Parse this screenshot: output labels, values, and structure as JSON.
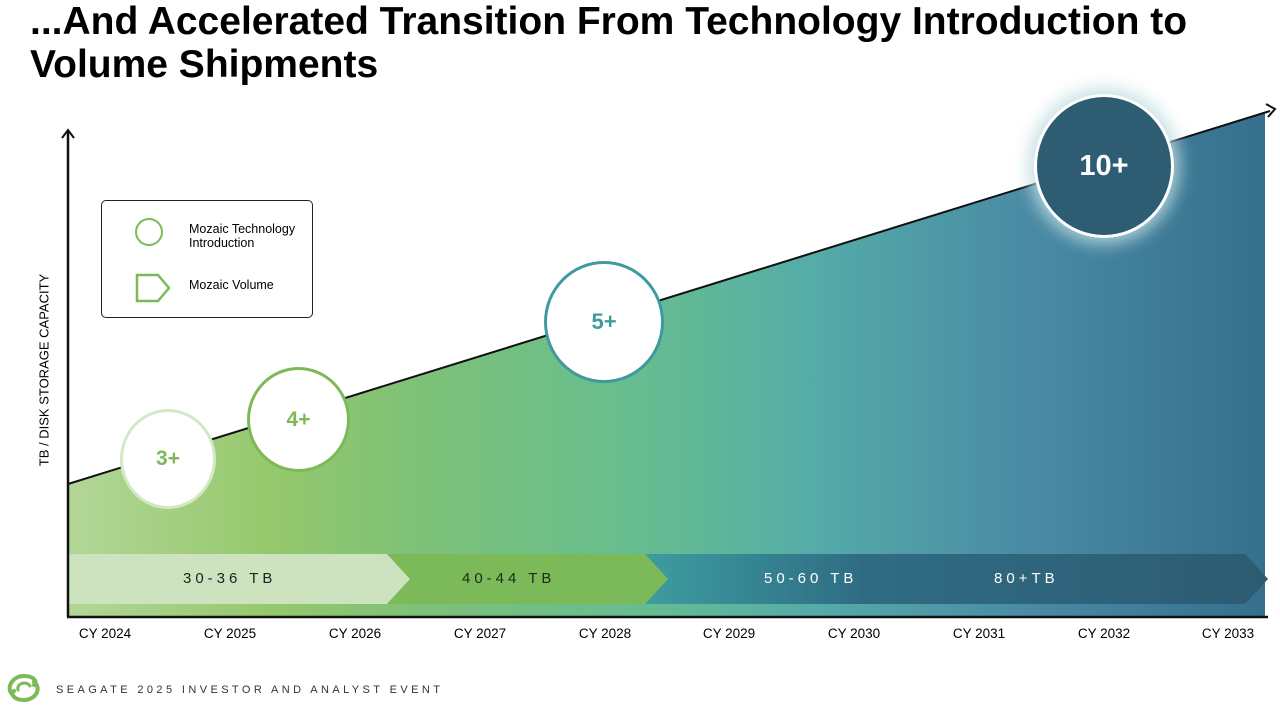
{
  "slide": {
    "title": "...And Accelerated Transition From Technology Introduction to Volume Shipments",
    "footer": "SEAGATE 2025 INVESTOR AND ANALYST EVENT",
    "logo_icon": "seagate-logo-icon"
  },
  "axes": {
    "ylabel": "TB / DISK STORAGE CAPACITY",
    "xticks": [
      "CY 2024",
      "CY 2025",
      "CY 2026",
      "CY 2027",
      "CY 2028",
      "CY 2029",
      "CY 2030",
      "CY 2031",
      "CY 2032",
      "CY 2033"
    ]
  },
  "legend": {
    "introduction_label": "Mozaic Technology Introduction",
    "volume_label": "Mozaic Volume",
    "introduction_icon": "circle-outline-icon",
    "volume_icon": "pentagon-arrow-icon"
  },
  "bubbles": [
    {
      "label": "3+"
    },
    {
      "label": "4+"
    },
    {
      "label": "5+"
    },
    {
      "label": "10+"
    }
  ],
  "bands": [
    {
      "label": "30-36 TB"
    },
    {
      "label": "40-44 TB"
    },
    {
      "label": "50-60 TB"
    },
    {
      "label": "80+TB"
    }
  ],
  "colors": {
    "green_light": "#a9d08e",
    "green": "#7cba59",
    "teal": "#4ea8a0",
    "blue": "#356f8c",
    "navy": "#2e5c73"
  }
}
